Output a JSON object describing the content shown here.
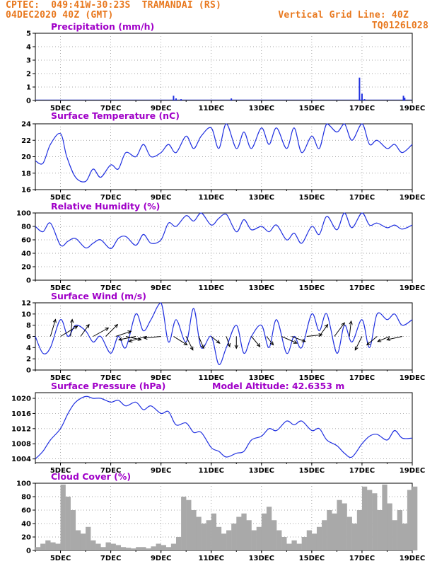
{
  "header": {
    "line1_left": "CPTEC:  049:41W-30:23S  TRAMANDAI (RS)",
    "line2_left": "04DEC2020 40Z (GMT)",
    "line2_right": "Vertical Grid Line: 40Z",
    "line3_right": "TQ0126L028"
  },
  "colors": {
    "line": "#2030e0",
    "bar": "#2030e0",
    "cloud": "#a9a9a9",
    "title": "#a000c8",
    "header": "#e8781e"
  },
  "x_axis_labels": [
    "5DEC",
    "7DEC",
    "9DEC",
    "11DEC",
    "13DEC",
    "15DEC",
    "17DEC",
    "19DEC"
  ],
  "model_altitude": "Model Altitude: 42.6353 m",
  "chart_data": [
    {
      "type": "bar",
      "title": "Precipitation (mm/h)",
      "x_unit": "day-of-December",
      "ylim": [
        0,
        5
      ],
      "yticks": [
        "0",
        "1",
        "2",
        "3",
        "4",
        "5"
      ],
      "x": [
        9.5,
        9.6,
        9.8,
        11.8,
        16.9,
        17.0,
        17.1,
        18.65,
        18.7
      ],
      "values": [
        0.35,
        0.15,
        0.1,
        0.15,
        1.7,
        0.5,
        0.1,
        0.35,
        0.2
      ]
    },
    {
      "type": "line",
      "title": "Surface Temperature (nC)",
      "x_unit": "day-of-December",
      "ylim": [
        16,
        24
      ],
      "yticks": [
        "16",
        "18",
        "20",
        "22",
        "24"
      ],
      "x": [
        4.0,
        4.3,
        4.6,
        5.0,
        5.25,
        5.6,
        6.0,
        6.3,
        6.6,
        7.0,
        7.3,
        7.6,
        8.0,
        8.3,
        8.6,
        9.0,
        9.3,
        9.6,
        10.0,
        10.3,
        10.6,
        11.0,
        11.3,
        11.6,
        12.0,
        12.3,
        12.6,
        13.0,
        13.3,
        13.6,
        14.0,
        14.3,
        14.6,
        15.0,
        15.3,
        15.6,
        16.0,
        16.3,
        16.6,
        17.0,
        17.3,
        17.6,
        18.0,
        18.3,
        18.6,
        19.0
      ],
      "values": [
        19.5,
        19.2,
        21.5,
        22.8,
        20.0,
        17.5,
        17.0,
        18.5,
        17.5,
        19.0,
        18.5,
        20.5,
        20.0,
        21.5,
        20.0,
        20.5,
        21.5,
        20.5,
        22.5,
        21.0,
        22.5,
        23.5,
        21.0,
        24.0,
        21.0,
        23.0,
        21.0,
        23.5,
        21.5,
        23.5,
        21.0,
        23.5,
        20.5,
        22.5,
        21.0,
        24.0,
        23.0,
        24.0,
        22.0,
        24.0,
        21.5,
        22.0,
        21.0,
        21.5,
        20.5,
        21.5
      ]
    },
    {
      "type": "line",
      "title": "Relative Humidity (%)",
      "x_unit": "day-of-December",
      "ylim": [
        0,
        100
      ],
      "yticks": [
        "0",
        "20",
        "40",
        "60",
        "80",
        "100"
      ],
      "x": [
        4.0,
        4.3,
        4.6,
        5.0,
        5.3,
        5.6,
        6.0,
        6.3,
        6.6,
        7.0,
        7.3,
        7.6,
        8.0,
        8.3,
        8.6,
        9.0,
        9.3,
        9.6,
        10.0,
        10.3,
        10.6,
        11.0,
        11.3,
        11.6,
        12.0,
        12.3,
        12.6,
        13.0,
        13.3,
        13.6,
        14.0,
        14.3,
        14.6,
        15.0,
        15.3,
        15.6,
        16.0,
        16.3,
        16.6,
        17.0,
        17.3,
        17.6,
        18.0,
        18.3,
        18.6,
        19.0
      ],
      "values": [
        80,
        72,
        85,
        52,
        58,
        62,
        48,
        55,
        60,
        47,
        62,
        65,
        52,
        68,
        55,
        60,
        85,
        80,
        96,
        88,
        100,
        82,
        92,
        98,
        72,
        90,
        75,
        80,
        72,
        82,
        60,
        70,
        55,
        80,
        68,
        95,
        75,
        100,
        78,
        100,
        82,
        85,
        78,
        82,
        76,
        82
      ]
    },
    {
      "type": "line",
      "title": "Surface Wind (m/s)",
      "x_unit": "day-of-December",
      "ylim": [
        0,
        12
      ],
      "yticks": [
        "0",
        "2",
        "4",
        "6",
        "8",
        "10",
        "12"
      ],
      "x": [
        4.0,
        4.3,
        4.6,
        5.0,
        5.3,
        5.6,
        6.0,
        6.3,
        6.6,
        7.0,
        7.3,
        7.6,
        8.0,
        8.3,
        8.6,
        9.0,
        9.3,
        9.6,
        10.0,
        10.3,
        10.6,
        11.0,
        11.3,
        11.6,
        12.0,
        12.3,
        12.6,
        13.0,
        13.3,
        13.6,
        14.0,
        14.3,
        14.6,
        15.0,
        15.3,
        15.6,
        16.0,
        16.3,
        16.6,
        17.0,
        17.3,
        17.6,
        18.0,
        18.3,
        18.6,
        19.0
      ],
      "values": [
        6,
        3,
        4,
        9,
        6,
        8,
        7,
        5,
        6,
        3,
        6,
        4,
        10,
        7,
        9,
        12,
        5,
        9,
        5,
        11,
        4,
        6,
        1,
        4,
        8,
        3,
        6,
        8,
        4,
        9,
        3,
        6,
        4,
        10,
        7,
        10,
        3,
        8,
        5,
        9,
        4,
        10,
        9,
        10,
        8,
        9
      ],
      "arrows": [
        {
          "x": 4.6,
          "u": 0.3,
          "v": -1.0
        },
        {
          "x": 5.0,
          "u": 1.0,
          "v": -0.6
        },
        {
          "x": 5.4,
          "u": 0.1,
          "v": -1.0
        },
        {
          "x": 5.8,
          "u": 0.5,
          "v": -0.7
        },
        {
          "x": 6.3,
          "u": 0.9,
          "v": -0.5
        },
        {
          "x": 6.8,
          "u": 0.7,
          "v": -0.7
        },
        {
          "x": 7.2,
          "u": 0.9,
          "v": -0.3
        },
        {
          "x": 7.6,
          "u": 0.9,
          "v": 0.2
        },
        {
          "x": 8.0,
          "u": -1.0,
          "v": 0.2
        },
        {
          "x": 8.4,
          "u": -1.0,
          "v": 0.3
        },
        {
          "x": 9.0,
          "u": -1.0,
          "v": 0.1
        },
        {
          "x": 9.5,
          "u": 0.8,
          "v": 0.5
        },
        {
          "x": 10.0,
          "u": 0.4,
          "v": 0.8
        },
        {
          "x": 10.5,
          "u": 0.3,
          "v": 0.7
        },
        {
          "x": 11.0,
          "u": 0.5,
          "v": 0.4
        },
        {
          "x": 11.6,
          "u": 0.2,
          "v": 0.6
        },
        {
          "x": 12.0,
          "u": 0.0,
          "v": 0.7
        },
        {
          "x": 12.6,
          "u": 0.5,
          "v": 0.6
        },
        {
          "x": 13.2,
          "u": 0.4,
          "v": 0.5
        },
        {
          "x": 13.8,
          "u": 0.9,
          "v": 0.4
        },
        {
          "x": 14.2,
          "u": 0.8,
          "v": 0.3
        },
        {
          "x": 14.8,
          "u": 0.9,
          "v": -0.1
        },
        {
          "x": 15.3,
          "u": 0.5,
          "v": -0.7
        },
        {
          "x": 15.9,
          "u": 0.6,
          "v": -0.8
        },
        {
          "x": 16.5,
          "u": 0.1,
          "v": -0.9
        },
        {
          "x": 17.0,
          "u": -0.4,
          "v": 0.8
        },
        {
          "x": 17.6,
          "u": -0.6,
          "v": 0.5
        },
        {
          "x": 18.1,
          "u": -0.7,
          "v": 0.3
        },
        {
          "x": 18.6,
          "u": -0.9,
          "v": 0.2
        }
      ]
    },
    {
      "type": "line",
      "title": "Surface Pressure (hPa)",
      "x_unit": "day-of-December",
      "ylim": [
        1003,
        1021.5
      ],
      "yticks": [
        "1004",
        "1008",
        "1012",
        "1016",
        "1020"
      ],
      "x": [
        4.0,
        4.3,
        4.6,
        5.0,
        5.3,
        5.6,
        6.0,
        6.3,
        6.6,
        7.0,
        7.3,
        7.6,
        8.0,
        8.3,
        8.6,
        9.0,
        9.3,
        9.6,
        10.0,
        10.3,
        10.6,
        11.0,
        11.3,
        11.6,
        12.0,
        12.3,
        12.6,
        13.0,
        13.3,
        13.6,
        14.0,
        14.3,
        14.6,
        15.0,
        15.3,
        15.6,
        16.0,
        16.3,
        16.6,
        17.0,
        17.3,
        17.6,
        18.0,
        18.3,
        18.6,
        19.0
      ],
      "values": [
        1004,
        1006,
        1009,
        1012,
        1016,
        1019,
        1020.5,
        1020,
        1020,
        1019,
        1019.5,
        1018,
        1019,
        1017,
        1018,
        1016,
        1016.5,
        1013,
        1013.5,
        1011,
        1011,
        1007,
        1006,
        1004.5,
        1005.5,
        1006,
        1009,
        1010,
        1012,
        1011.5,
        1014,
        1013,
        1014,
        1011.5,
        1012,
        1009,
        1007.5,
        1005.5,
        1004.5,
        1008,
        1010,
        1010.5,
        1009,
        1011.5,
        1009.5,
        1009.5
      ]
    },
    {
      "type": "bar",
      "title": "Cloud Cover (%)",
      "x_unit": "day-of-December",
      "ylim": [
        0,
        100
      ],
      "yticks": [
        "0",
        "20",
        "40",
        "60",
        "80",
        "100"
      ],
      "x": [
        4.0,
        4.2,
        4.4,
        4.6,
        4.8,
        5.0,
        5.2,
        5.4,
        5.6,
        5.8,
        6.0,
        6.2,
        6.4,
        6.6,
        6.8,
        7.0,
        7.2,
        7.4,
        7.6,
        7.8,
        8.0,
        8.2,
        8.4,
        8.6,
        8.8,
        9.0,
        9.2,
        9.4,
        9.6,
        9.8,
        10.0,
        10.2,
        10.4,
        10.6,
        10.8,
        11.0,
        11.2,
        11.4,
        11.6,
        11.8,
        12.0,
        12.2,
        12.4,
        12.6,
        12.8,
        13.0,
        13.2,
        13.4,
        13.6,
        13.8,
        14.0,
        14.2,
        14.4,
        14.6,
        14.8,
        15.0,
        15.2,
        15.4,
        15.6,
        15.8,
        16.0,
        16.2,
        16.4,
        16.6,
        16.8,
        17.0,
        17.2,
        17.4,
        17.6,
        17.8,
        18.0,
        18.2,
        18.4,
        18.6,
        18.8,
        19.0
      ],
      "values": [
        5,
        10,
        15,
        12,
        10,
        98,
        80,
        60,
        30,
        25,
        35,
        15,
        10,
        5,
        12,
        10,
        8,
        5,
        4,
        3,
        5,
        5,
        3,
        6,
        10,
        8,
        5,
        10,
        20,
        80,
        75,
        60,
        50,
        40,
        45,
        55,
        35,
        25,
        30,
        40,
        50,
        55,
        45,
        30,
        35,
        55,
        65,
        45,
        30,
        20,
        10,
        15,
        10,
        20,
        30,
        25,
        35,
        45,
        60,
        55,
        75,
        70,
        50,
        40,
        60,
        95,
        90,
        85,
        60,
        98,
        70,
        45,
        60,
        40,
        90,
        95
      ]
    }
  ]
}
